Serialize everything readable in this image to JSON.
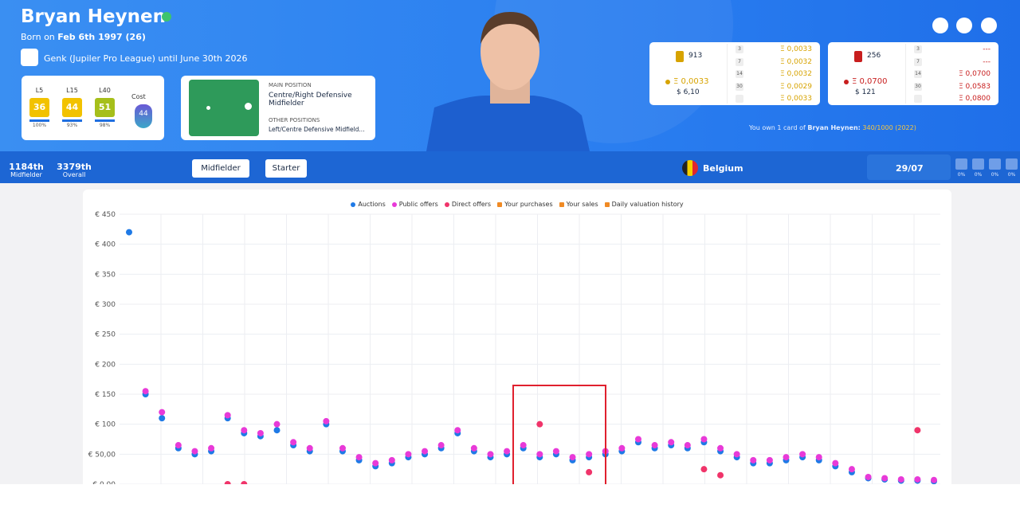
{
  "header": {
    "name": "Bryan Heynen",
    "born_prefix": "Born on",
    "born": "Feb 6th 1997 (26)",
    "club": "Genk (Jupiler Pro League) until June 30th 2026"
  },
  "scores": [
    {
      "label": "L5",
      "value": 36,
      "percent": "100%",
      "color": "#f2c200"
    },
    {
      "label": "L15",
      "value": 44,
      "percent": "93%",
      "color": "#f2c200"
    },
    {
      "label": "L40",
      "value": 51,
      "percent": "98%",
      "color": "#a6bf1a"
    }
  ],
  "cost": {
    "label": "Cost",
    "value": 44
  },
  "positions": {
    "main_title": "MAIN POSITION",
    "main": "Centre/Right Defensive Midfielder",
    "other_title": "OTHER POSITIONS",
    "other": "Left/Centre Defensive Midfield..."
  },
  "rarity_cards": [
    {
      "supply": 913,
      "price": "Ξ 0,0033",
      "usd": "$ 6,10",
      "color": "#d7a300",
      "rows": [
        {
          "period": "3",
          "price": "Ξ 0,0033"
        },
        {
          "period": "7",
          "price": "Ξ 0,0032"
        },
        {
          "period": "14",
          "price": "Ξ 0,0032"
        },
        {
          "period": "30",
          "price": "Ξ 0,0029"
        },
        {
          "price": "Ξ 0,0033"
        }
      ]
    },
    {
      "supply": 256,
      "price": "Ξ 0,0700",
      "usd": "$ 121",
      "color": "#c81e1e",
      "rows": [
        {
          "period": "3",
          "price": "---"
        },
        {
          "period": "7",
          "price": "---"
        },
        {
          "period": "14",
          "price": "Ξ 0,0700"
        },
        {
          "period": "30",
          "price": "Ξ 0,0583"
        },
        {
          "price": "Ξ 0,0800"
        }
      ]
    }
  ],
  "ownership": {
    "prefix": "You own 1 card of",
    "name": "Bryan Heynen:",
    "detail": "340/1000 (2022)"
  },
  "stats_bar": {
    "rank_position": "1184th",
    "position": "Midfielder",
    "rank_overall": "3379th",
    "overall": "Overall",
    "buttons": [
      "Midfielder",
      "Starter"
    ],
    "country": "Belgium",
    "date": "29/07",
    "percents": [
      "0%",
      "0%",
      "0%",
      "0%"
    ]
  },
  "chart_data": {
    "type": "scatter",
    "ylim": [
      0,
      450
    ],
    "yticks": [
      {
        "value": 0,
        "label": "€ 0,00"
      },
      {
        "value": 50,
        "label": "€ 50,00"
      },
      {
        "value": 100,
        "label": "€ 100"
      },
      {
        "value": 150,
        "label": "€ 150"
      },
      {
        "value": 200,
        "label": "€ 200"
      },
      {
        "value": 250,
        "label": "€ 250"
      },
      {
        "value": 300,
        "label": "€ 300"
      },
      {
        "value": 350,
        "label": "€ 350"
      },
      {
        "value": 400,
        "label": "€ 400"
      },
      {
        "value": 450,
        "label": "€ 450"
      }
    ],
    "grid": true,
    "series": [
      {
        "name": "Auctions",
        "color": "#1f7ae6",
        "values": [
          420,
          150,
          110,
          60,
          50,
          55,
          110,
          85,
          80,
          90,
          65,
          55,
          100,
          55,
          40,
          30,
          35,
          45,
          50,
          60,
          85,
          55,
          45,
          50,
          60,
          45,
          50,
          40,
          45,
          50,
          55,
          70,
          60,
          65,
          60,
          70,
          55,
          45,
          35,
          35,
          40,
          45,
          40,
          30,
          20,
          10,
          8,
          6,
          6,
          5
        ]
      },
      {
        "name": "Public offers",
        "color": "#e83ad8",
        "values": [
          null,
          155,
          120,
          65,
          55,
          60,
          115,
          90,
          85,
          100,
          70,
          60,
          105,
          60,
          45,
          35,
          40,
          50,
          55,
          65,
          90,
          60,
          50,
          55,
          65,
          50,
          55,
          45,
          50,
          55,
          60,
          75,
          65,
          70,
          65,
          75,
          60,
          50,
          40,
          40,
          45,
          50,
          45,
          35,
          25,
          12,
          10,
          8,
          8,
          7
        ]
      },
      {
        "name": "Direct offers",
        "color": "#f0346a",
        "values": [
          null,
          null,
          null,
          null,
          null,
          null,
          0,
          0,
          null,
          null,
          null,
          null,
          null,
          null,
          null,
          null,
          null,
          null,
          null,
          null,
          null,
          null,
          null,
          null,
          null,
          100,
          null,
          null,
          20,
          null,
          null,
          null,
          null,
          null,
          null,
          25,
          15,
          null,
          null,
          null,
          null,
          null,
          null,
          null,
          null,
          null,
          null,
          null,
          90,
          null
        ]
      }
    ],
    "locked_legend": [
      "Your purchases",
      "Your sales",
      "Daily valuation history"
    ]
  }
}
